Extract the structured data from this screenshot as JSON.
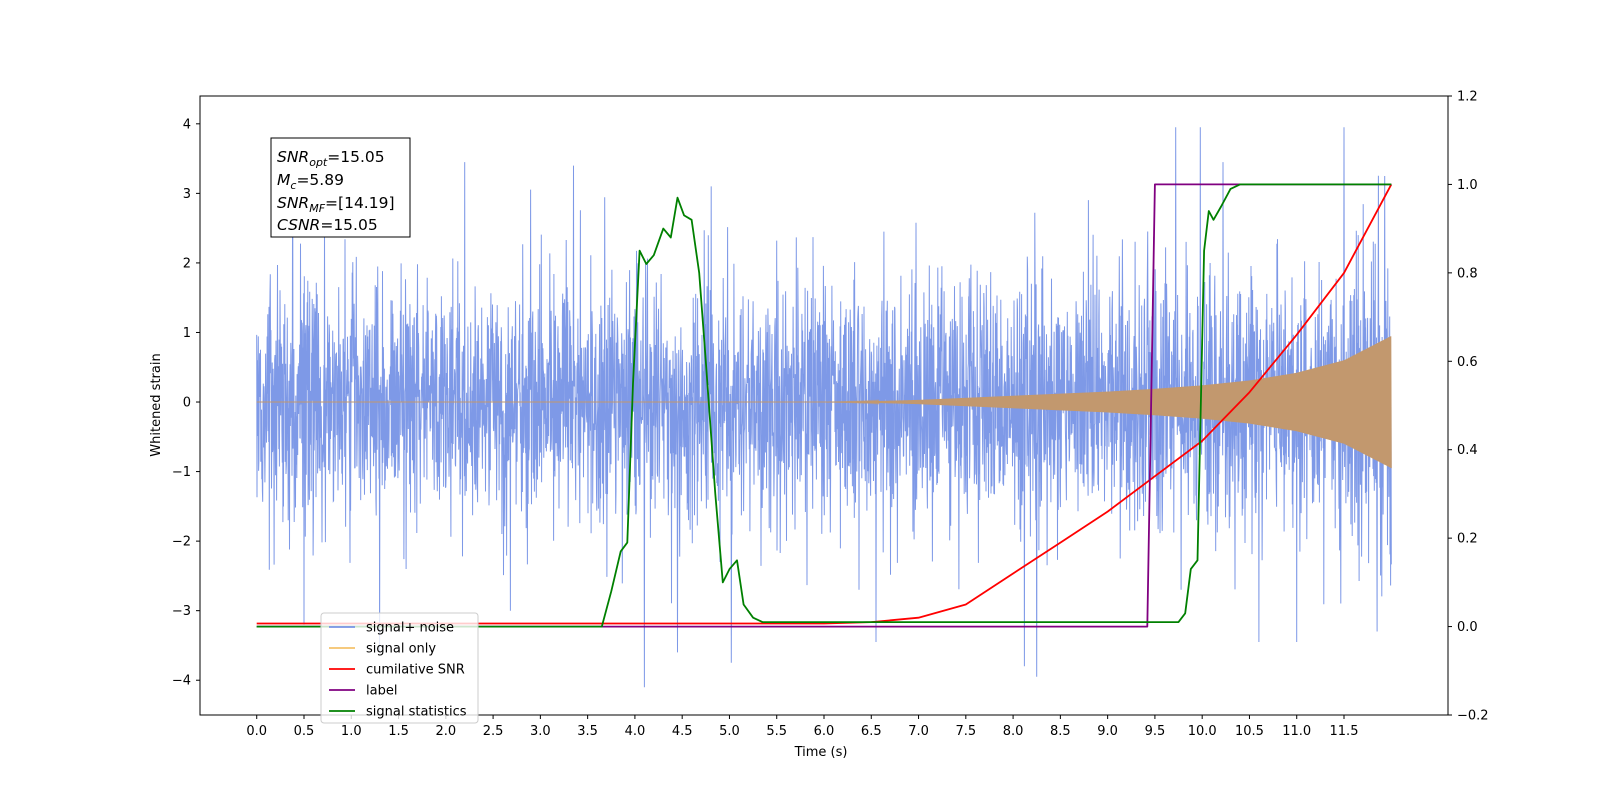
{
  "chart_data": {
    "type": "line",
    "xlabel": "Time (s)",
    "ylabel": "Whitened strain",
    "xlim": [
      -0.6,
      12.6
    ],
    "ylim": [
      -4.5,
      4.4
    ],
    "y2lim": [
      -0.2,
      1.2
    ],
    "x_ticks": [
      "0.0",
      "0.5",
      "1.0",
      "1.5",
      "2.0",
      "2.5",
      "3.0",
      "3.5",
      "4.0",
      "4.5",
      "5.0",
      "5.5",
      "6.0",
      "6.5",
      "7.0",
      "7.5",
      "8.0",
      "8.5",
      "9.0",
      "9.5",
      "10.0",
      "10.5",
      "11.0",
      "11.5"
    ],
    "y_ticks": [
      "4",
      "3",
      "2",
      "1",
      "0",
      "−1",
      "−2",
      "−3",
      "−4"
    ],
    "y2_ticks": [
      "1.2",
      "1.0",
      "0.8",
      "0.6",
      "0.4",
      "0.2",
      "0.0",
      "−0.2"
    ],
    "annotation": {
      "snr_opt": {
        "base": "SNR",
        "sub": "opt",
        "value": "=15.05"
      },
      "mc": {
        "base": "M",
        "sub": "c",
        "value": "=5.89"
      },
      "snr_mf": {
        "base": "SNR",
        "sub": "MF",
        "value": "=[14.19]"
      },
      "csnr": {
        "base": "CSNR",
        "value": "=15.05"
      }
    },
    "legend": {
      "placement": "lower-left",
      "entries": [
        {
          "label": "signal+ noise",
          "color": "#7793e6"
        },
        {
          "label": "signal only",
          "color": "#f5c26b"
        },
        {
          "label": "cumilative SNR",
          "color": "#ff0000"
        },
        {
          "label": "label",
          "color": "#800080"
        },
        {
          "label": "signal statistics",
          "color": "#008000"
        }
      ]
    },
    "series": [
      {
        "name": "signal+ noise",
        "axis": "left",
        "color": "#7793e6",
        "noise_sigma": 0.9,
        "x_range": [
          0.0,
          12.0
        ],
        "spikes": [
          [
            0.38,
            3.8
          ],
          [
            0.5,
            -3.2
          ],
          [
            1.3,
            -3.6
          ],
          [
            2.2,
            3.45
          ],
          [
            3.35,
            3.4
          ],
          [
            4.1,
            -4.1
          ],
          [
            4.45,
            -3.6
          ],
          [
            5.02,
            -3.75
          ],
          [
            6.55,
            -3.45
          ],
          [
            8.25,
            -3.95
          ],
          [
            8.12,
            -3.8
          ],
          [
            9.72,
            3.95
          ],
          [
            9.98,
            3.95
          ],
          [
            10.22,
            3.45
          ],
          [
            10.6,
            -3.45
          ],
          [
            11.0,
            -3.45
          ],
          [
            11.5,
            3.95
          ],
          [
            11.85,
            -3.3
          ],
          [
            11.93,
            3.25
          ]
        ]
      },
      {
        "name": "signal only",
        "axis": "left",
        "color": "#c2986e",
        "envelope": {
          "x": [
            0.0,
            6.0,
            6.5,
            7.0,
            7.5,
            8.0,
            8.5,
            9.0,
            9.5,
            10.0,
            10.5,
            11.0,
            11.5,
            12.0
          ],
          "amp": [
            0.0,
            0.0,
            0.01,
            0.03,
            0.06,
            0.09,
            0.12,
            0.15,
            0.19,
            0.24,
            0.31,
            0.42,
            0.6,
            0.95
          ]
        }
      },
      {
        "name": "cumilative SNR",
        "axis": "right",
        "color": "#ff0000",
        "x": [
          0.0,
          6.0,
          6.5,
          7.0,
          7.5,
          8.0,
          8.5,
          9.0,
          9.5,
          10.0,
          10.5,
          11.0,
          11.5,
          12.0
        ],
        "y": [
          0.007,
          0.007,
          0.01,
          0.02,
          0.05,
          0.12,
          0.19,
          0.26,
          0.34,
          0.42,
          0.53,
          0.66,
          0.8,
          1.0
        ]
      },
      {
        "name": "label",
        "axis": "right",
        "color": "#800080",
        "x": [
          0.0,
          9.42,
          9.5,
          12.0
        ],
        "y": [
          0.0,
          0.0,
          1.0,
          1.0
        ]
      },
      {
        "name": "signal statistics",
        "axis": "right",
        "color": "#008000",
        "x": [
          0.0,
          3.65,
          3.75,
          3.85,
          3.92,
          3.98,
          4.05,
          4.12,
          4.2,
          4.3,
          4.38,
          4.45,
          4.52,
          4.6,
          4.68,
          4.75,
          4.85,
          4.93,
          5.0,
          5.08,
          5.15,
          5.25,
          5.35,
          5.5,
          9.75,
          9.82,
          9.88,
          9.95,
          10.02,
          10.07,
          10.12,
          10.2,
          10.3,
          10.4,
          10.6,
          11.0,
          12.0
        ],
        "y": [
          0.0,
          0.0,
          0.08,
          0.17,
          0.19,
          0.55,
          0.85,
          0.82,
          0.84,
          0.9,
          0.88,
          0.97,
          0.93,
          0.92,
          0.8,
          0.6,
          0.3,
          0.1,
          0.13,
          0.15,
          0.05,
          0.02,
          0.01,
          0.01,
          0.01,
          0.03,
          0.13,
          0.15,
          0.85,
          0.94,
          0.92,
          0.95,
          0.99,
          1.0,
          1.0,
          1.0,
          1.0
        ]
      }
    ]
  }
}
